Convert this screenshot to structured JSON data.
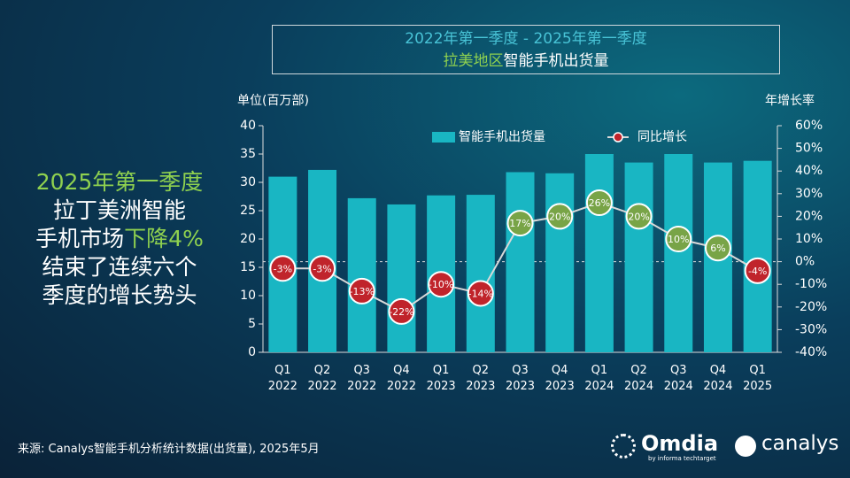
{
  "title_box": {
    "line1": "2022年第一季度 -  2025年第一季度",
    "line2a": "拉美地区",
    "line2b": "智能手机出货量"
  },
  "headline": {
    "line1": "2025年第一季度",
    "line2": "拉丁美洲智能",
    "line3a": "手机市场",
    "line3b": "下降4%",
    "line4": "结束了连续六个",
    "line5": "季度的增长势头"
  },
  "source": "来源: Canalys智能手机分析统计数据(出货量), 2025年5月",
  "logos": {
    "omdia": "Omdia",
    "omdia_sub": "by informa techtarget",
    "canalys": "canalys"
  },
  "chart_data": {
    "type": "bar",
    "y_label": "单位(百万部)",
    "y2_label": "年增长率",
    "categories": [
      "Q1 2022",
      "Q2 2022",
      "Q3 2022",
      "Q4 2022",
      "Q1 2023",
      "Q2 2023",
      "Q3 2023",
      "Q4 2023",
      "Q1 2024",
      "Q2 2024",
      "Q3 2024",
      "Q4 2024",
      "Q1 2025"
    ],
    "series": [
      {
        "name": "智能手机出货量",
        "type": "bar",
        "color": "#19b6c3",
        "values": [
          31,
          32.2,
          27.2,
          26.1,
          27.7,
          27.8,
          31.8,
          31.6,
          35,
          33.5,
          35,
          33.5,
          33.8
        ]
      },
      {
        "name": "同比增长",
        "type": "line",
        "axis": "y2",
        "color": "#d9d9d9",
        "positive_color": "#78a447",
        "negative_color": "#c0242b",
        "values": [
          -3,
          -3,
          -13,
          -22,
          -10,
          -14,
          17,
          20,
          26,
          20,
          10,
          6,
          -4
        ],
        "value_labels": [
          "-3%",
          "-3%",
          "-13%",
          "-22%",
          "-10%",
          "-14%",
          "17%",
          "20%",
          "26%",
          "20%",
          "10%",
          "6%",
          "-4%"
        ]
      }
    ],
    "ylim": [
      0,
      40
    ],
    "yticks": [
      0,
      5,
      10,
      15,
      20,
      25,
      30,
      35,
      40
    ],
    "y2lim": [
      -40,
      60
    ],
    "y2ticks": [
      {
        "value": -40,
        "label": "-40%"
      },
      {
        "value": -30,
        "label": "-30%"
      },
      {
        "value": -20,
        "label": "-20%"
      },
      {
        "value": -10,
        "label": "-10%"
      },
      {
        "value": 0,
        "label": "0%"
      },
      {
        "value": 10,
        "label": "10%"
      },
      {
        "value": 20,
        "label": "20%"
      },
      {
        "value": 30,
        "label": "30%"
      },
      {
        "value": 40,
        "label": "40%"
      },
      {
        "value": 50,
        "label": "50%"
      },
      {
        "value": 60,
        "label": "60%"
      }
    ],
    "legend": "top"
  }
}
